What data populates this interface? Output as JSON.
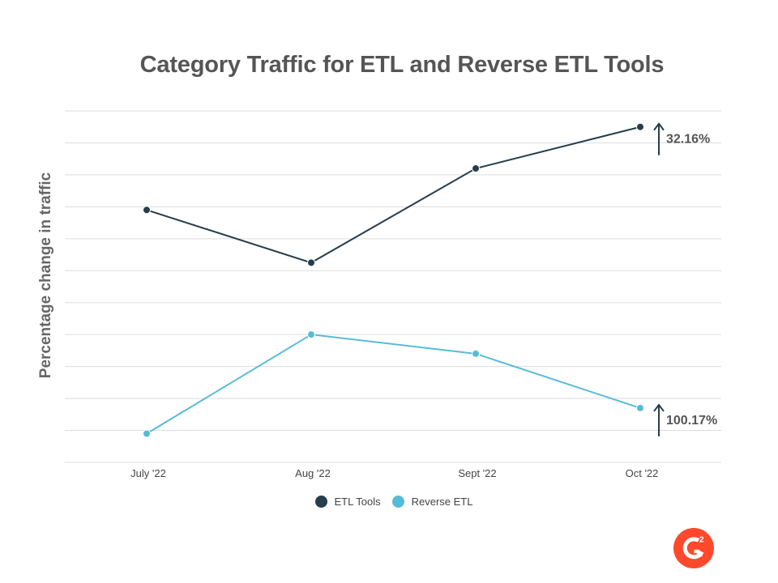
{
  "colors": {
    "etl": "#263d4c",
    "reverse": "#56bcd6",
    "grid": "#dddddd",
    "logo": "#ff492c"
  },
  "logo": {
    "text": "G2",
    "icon": "g2-logo-icon"
  },
  "chart_data": {
    "type": "line",
    "title": "Category Traffic for ETL and Reverse ETL Tools",
    "xlabel": "",
    "ylabel": "Percentage change in traffic",
    "categories": [
      "July '22",
      "Aug '22",
      "Sept '22",
      "Oct '22"
    ],
    "ylim": [
      0,
      11
    ],
    "grid": true,
    "y_tick_labels_shown": false,
    "legend_position": "bottom",
    "series": [
      {
        "name": "ETL Tools",
        "color": "#263d4c",
        "values": [
          7.9,
          6.25,
          9.2,
          10.5
        ]
      },
      {
        "name": "Reverse ETL",
        "color": "#56bcd6",
        "values": [
          0.9,
          4.0,
          3.4,
          1.7
        ]
      }
    ],
    "annotations": [
      {
        "series": "ETL Tools",
        "text": "32.16%",
        "direction": "up"
      },
      {
        "series": "Reverse ETL",
        "text": "100.17%",
        "direction": "up"
      }
    ]
  }
}
